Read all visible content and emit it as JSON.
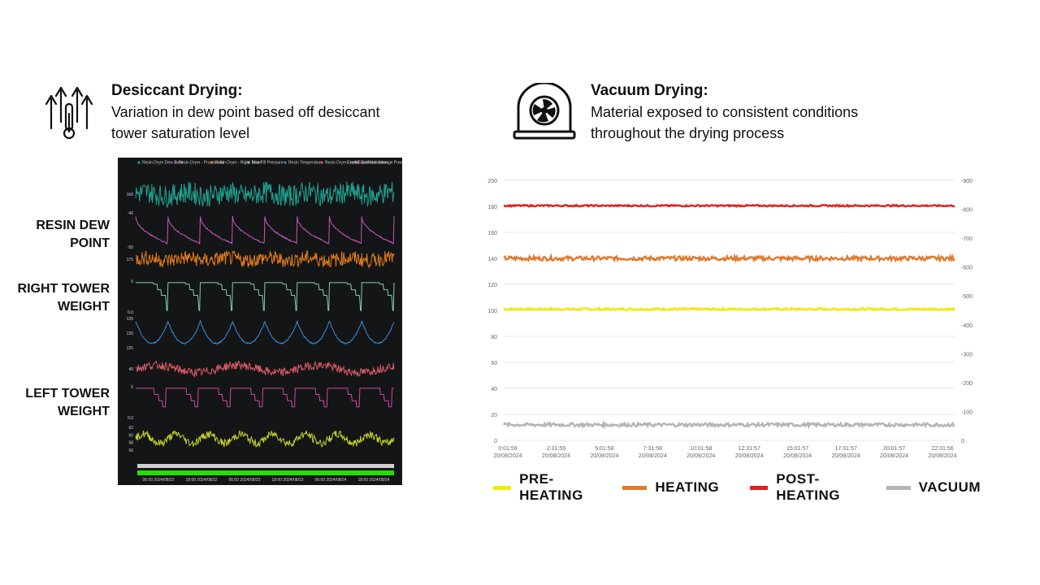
{
  "desiccant": {
    "title": "Desiccant Drying:",
    "description_line1": "Variation in dew point based off desiccant",
    "description_line2": "tower saturation level",
    "icon": "heat-arrows-thermometer-icon",
    "side_labels": {
      "resin_dew_point": [
        "RESIN DEW",
        "POINT"
      ],
      "right_tower_weight": [
        "RIGHT TOWER",
        "WEIGHT"
      ],
      "left_tower_weight": [
        "LEFT TOWER",
        "WEIGHT"
      ]
    },
    "panel_header": [
      "Resin Dryer Dew Point",
      "Resin Dryer - Process Air",
      "Resin Dryer - Right Tower",
      "Max Fill Pressure",
      "Resin Temperature",
      "Resin Dryer - Left Tower",
      "Extruder Average Power"
    ],
    "panel_header_items": [
      "Events",
      "Production"
    ],
    "panel_ticks": {
      "row1": [
        "160"
      ],
      "row2": [
        "-40",
        "-50"
      ],
      "row3": [
        "175"
      ],
      "row4": [
        "5",
        "0.0"
      ],
      "row5": [
        "135",
        "130",
        "125"
      ],
      "row6": [
        "40"
      ],
      "row7": [
        "5",
        "0.0"
      ],
      "row8": [
        "62",
        "60",
        "58",
        "56"
      ]
    },
    "panel_x_labels": [
      "06:00 2024/08/22",
      "18:00 2024/08/22",
      "06:00 2024/08/23",
      "18:00 2024/08/23",
      "06:00 2024/08/24",
      "18:00 2024/08/24"
    ],
    "series_colors": [
      "#1fa28f",
      "#c758b9",
      "#e07b1a",
      "#7fd0a8",
      "#3b8fd8",
      "#d85a63",
      "#d046a8",
      "#c7d12c"
    ]
  },
  "vacuum": {
    "title": "Vacuum Drying:",
    "description_line1": "Material exposed to consistent conditions",
    "description_line2": "throughout the drying process",
    "icon": "vacuum-chamber-fan-icon"
  },
  "chart_data": {
    "type": "line",
    "title": "",
    "xlabel": "",
    "ylabel": "",
    "ylim": [
      0,
      200
    ],
    "y2lim": [
      -900,
      0
    ],
    "yticks": [
      "200",
      "180",
      "160",
      "140",
      "120",
      "100",
      "80",
      "60",
      "40",
      "20",
      "0"
    ],
    "y2ticks": [
      "0",
      "-100",
      "-200",
      "-300",
      "-400",
      "-500",
      "-600",
      "-700",
      "-800",
      "-900"
    ],
    "x_ticks": [
      [
        "0:01:59",
        "20/08/2024"
      ],
      [
        "2:31:59",
        "20/08/2024"
      ],
      [
        "5:01:58",
        "20/08/2024"
      ],
      [
        "7:31:58",
        "20/08/2024"
      ],
      [
        "10:01:58",
        "20/08/2024"
      ],
      [
        "12:31:57",
        "20/08/2024"
      ],
      [
        "15:01:57",
        "20/08/2024"
      ],
      [
        "17:31:57",
        "20/08/2024"
      ],
      [
        "20:01:57",
        "20/08/2024"
      ],
      [
        "22:31:56",
        "20/08/2024"
      ]
    ],
    "grid": true,
    "legend_position": "bottom",
    "series": [
      {
        "name": "PRE-HEATING",
        "color": "#f2ea00",
        "level": 101,
        "noise": 0.8
      },
      {
        "name": "HEATING",
        "color": "#e07a2e",
        "level": 140,
        "noise": 1.6
      },
      {
        "name": "POST-HEATING",
        "color": "#e02020",
        "level": 180.5,
        "noise": 0.6
      },
      {
        "name": "VACUUM",
        "color": "#b4b4b4",
        "level": 12,
        "noise": 1.3
      }
    ]
  }
}
